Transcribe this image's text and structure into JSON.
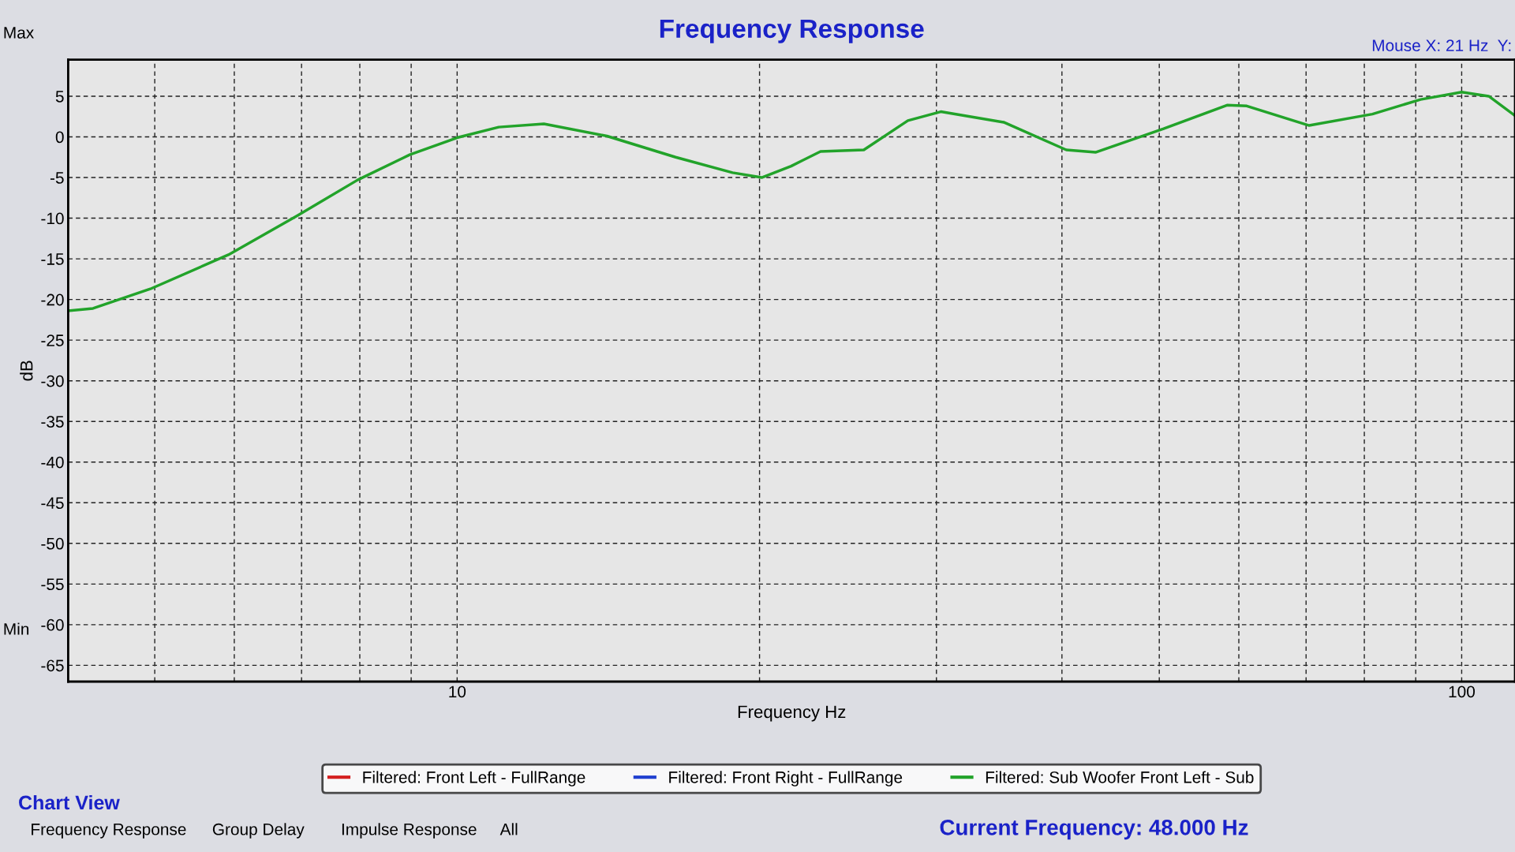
{
  "chart_data": {
    "type": "line",
    "title": "Frequency Response",
    "xlabel": "Frequency Hz",
    "ylabel": "dB",
    "log": "x",
    "xlim": [
      4.1,
      113
    ],
    "ylim": [
      -67,
      9.5
    ],
    "xticks": [
      {
        "value": 5,
        "label": null
      },
      {
        "value": 6,
        "label": null
      },
      {
        "value": 7,
        "label": null
      },
      {
        "value": 8,
        "label": null
      },
      {
        "value": 9,
        "label": null
      },
      10,
      {
        "value": 20,
        "label": null
      },
      {
        "value": 30,
        "label": null
      },
      {
        "value": 40,
        "label": null
      },
      {
        "value": 50,
        "label": null
      },
      {
        "value": 60,
        "label": null
      },
      {
        "value": 70,
        "label": null
      },
      {
        "value": 80,
        "label": null
      },
      {
        "value": 90,
        "label": null
      },
      100
    ],
    "yticks": [
      -65,
      -60,
      -55,
      -50,
      -45,
      -40,
      -35,
      -30,
      -25,
      -20,
      -15,
      -10,
      -5,
      0,
      5
    ],
    "grid": true,
    "line_style": "solid",
    "marker": "none",
    "legend": "bottom",
    "series": [
      {
        "name": "Filtered: Front Left - FullRange",
        "color": "#d42020"
      },
      {
        "name": "Filtered: Front Right - FullRange",
        "color": "#2040d0"
      },
      {
        "name": "Filtered: Sub Woofer Front Left - Sub",
        "color": "#22a32a",
        "x": [
          4.1,
          4.34,
          4.95,
          5.92,
          6.93,
          7.96,
          8.97,
          10,
          11.0,
          12.2,
          14.1,
          16.5,
          18.8,
          20.1,
          21.5,
          23.0,
          25.4,
          28.1,
          30.3,
          35.0,
          40.4,
          43.2,
          50.5,
          58.4,
          61.1,
          70.5,
          81.5,
          91,
          100,
          106.4,
          113
        ],
        "values": [
          -21.4,
          -21.1,
          -18.7,
          -14.5,
          -9.7,
          -5.3,
          -2.2,
          -0.1,
          1.2,
          1.6,
          0.1,
          -2.5,
          -4.4,
          -5.0,
          -3.6,
          -1.8,
          -1.6,
          2.0,
          3.1,
          1.8,
          -1.6,
          -1.9,
          1.0,
          3.9,
          3.8,
          1.4,
          2.8,
          4.6,
          5.5,
          5.0,
          2.6
        ]
      }
    ],
    "annotations": [
      "Max",
      "Min",
      "Mouse X: 21 Hz  Y:",
      "Chart View",
      "Frequency Response",
      "Group Delay",
      "Impulse Response",
      "All",
      "Current Frequency: 48.000 Hz"
    ]
  }
}
